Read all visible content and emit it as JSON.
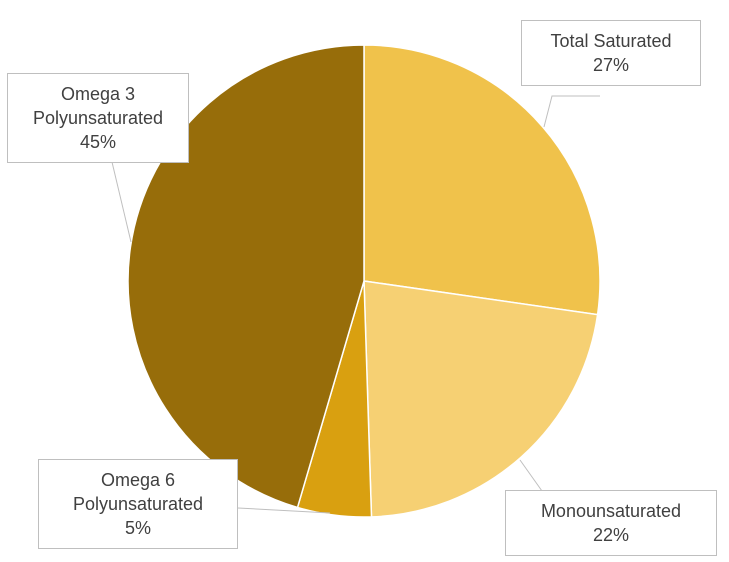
{
  "chart_data": {
    "type": "pie",
    "title": "",
    "start_angle_deg": 0,
    "direction": "clockwise",
    "slices": [
      {
        "label_lines": [
          "Total Saturated"
        ],
        "value": 27,
        "value_label": "27%",
        "color": "#f0c24b"
      },
      {
        "label_lines": [
          "Monounsaturated"
        ],
        "value": 22,
        "value_label": "22%",
        "color": "#f6d073"
      },
      {
        "label_lines": [
          "Omega 6",
          "Polyunsaturated"
        ],
        "value": 5,
        "value_label": "5%",
        "color": "#d9a010"
      },
      {
        "label_lines": [
          "Omega 3",
          "Polyunsaturated"
        ],
        "value": 45,
        "value_label": "45%",
        "color": "#976d0a"
      }
    ],
    "legend": "none",
    "label_style": "callouts"
  }
}
